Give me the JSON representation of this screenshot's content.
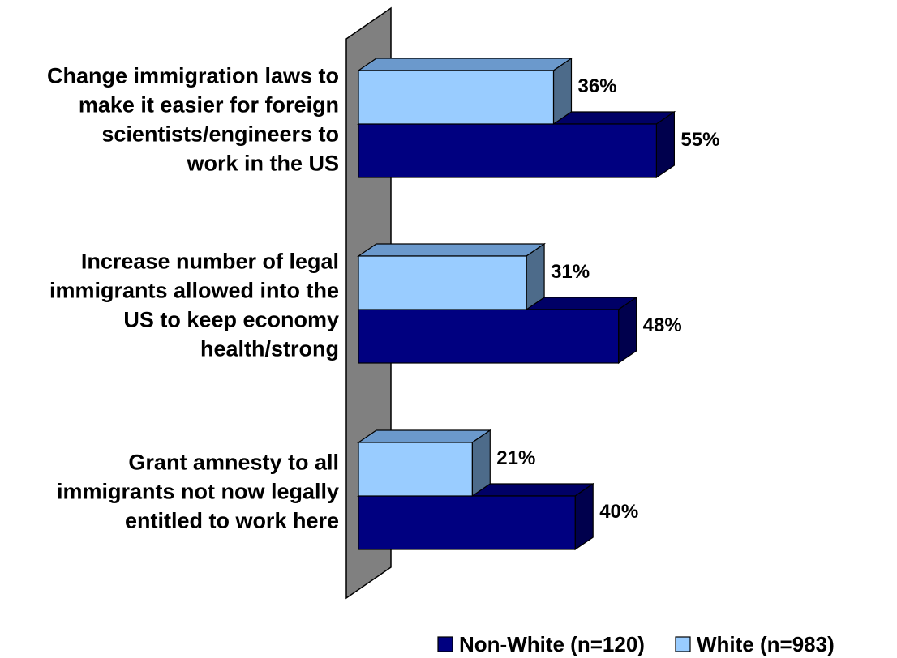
{
  "chart_data": {
    "type": "bar",
    "orientation": "horizontal",
    "three_d": true,
    "categories": [
      [
        "Change immigration laws to",
        "make it easier for foreign",
        "scientists/engineers to",
        "work in the US"
      ],
      [
        "Increase number of legal",
        "immigrants allowed into the",
        "US to keep economy",
        "health/strong"
      ],
      [
        "Grant amnesty to all",
        "immigrants not now legally",
        "entitled to work here"
      ]
    ],
    "series": [
      {
        "name": "White (n=983)",
        "values": [
          36,
          31,
          21
        ],
        "labels": [
          "36%",
          "31%",
          "21%"
        ],
        "color": "#99ccff",
        "top_color": "#6b99cc",
        "side_color": "#4d6b8a"
      },
      {
        "name": "Non-White (n=120)",
        "values": [
          55,
          48,
          40
        ],
        "labels": [
          "55%",
          "48%",
          "40%"
        ],
        "color": "#000080",
        "top_color": "#000066",
        "side_color": "#00004d"
      }
    ],
    "legend": {
      "placement": "bottom-right",
      "order": [
        "Non-White (n=120)",
        "White (n=983)"
      ]
    },
    "xlim": [
      0,
      60
    ],
    "grid": false,
    "wall_color": "#808080"
  }
}
